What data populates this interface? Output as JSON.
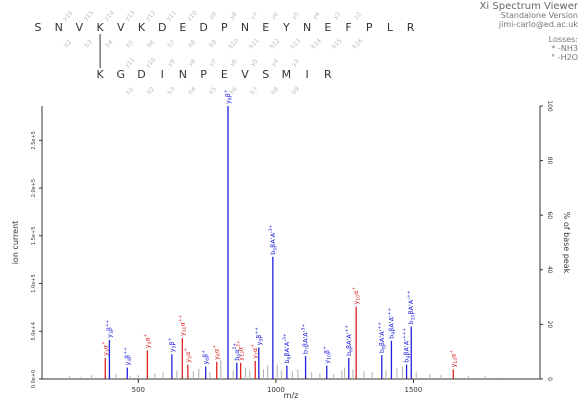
{
  "app": {
    "title": "Xi Spectrum Viewer",
    "version": "Standalone Version",
    "contact": "jimi-carlo@ed.ac.uk"
  },
  "losses": {
    "heading": "Losses:",
    "items": [
      "* -NH3",
      "° -H2O"
    ]
  },
  "peptides": {
    "alpha": [
      "S",
      "N",
      "V",
      "K",
      "V",
      "K",
      "D",
      "E",
      "D",
      "P",
      "N",
      "E",
      "Y",
      "N",
      "E",
      "F",
      "P",
      "L",
      "R"
    ],
    "beta": [
      "K",
      "G",
      "D",
      "I",
      "N",
      "P",
      "E",
      "V",
      "S",
      "M",
      "I",
      "R"
    ],
    "crosslink_alpha_index": 3,
    "crosslink_beta_index": 0,
    "alpha_b_labels": [
      "b2",
      "b3",
      "b4",
      "b5",
      "b6",
      "b7",
      "b8",
      "b9",
      "b10",
      "b11",
      "b12",
      "b13",
      "b14",
      "b15",
      "b16"
    ],
    "alpha_y_labels": [
      "y16",
      "y15",
      "y14",
      "y13",
      "y12",
      "y11",
      "y10",
      "y9",
      "y8",
      "y7",
      "y6",
      "y5",
      "y4",
      "y3",
      "y2"
    ],
    "beta_b_labels": [
      "b1",
      "b2",
      "b3",
      "b4",
      "b5",
      "b6",
      "b7",
      "b8",
      "b9"
    ],
    "beta_y_labels": [
      "y11",
      "y10",
      "y9",
      "y8",
      "y7",
      "y6",
      "y5",
      "y4",
      "y3"
    ]
  },
  "chart_data": {
    "type": "bar",
    "xlabel": "m/z",
    "ylabel": "ion current",
    "ylabel_right": "% of base peak",
    "xlim": [
      150,
      1960
    ],
    "ylim": [
      0,
      286000.0
    ],
    "xticks": [
      500,
      1000,
      1500
    ],
    "yticks": [
      0,
      50000.0,
      100000.0,
      150000.0,
      200000.0,
      250000.0
    ],
    "ytick_labels": [
      "0.0e+0",
      "5.0e+4",
      "1.0e+5",
      "1.5e+5",
      "2.0e+5",
      "2.5e+5"
    ],
    "y2ticks": [
      0,
      20,
      40,
      60,
      80,
      100
    ],
    "colors": {
      "alpha": "#e02020",
      "beta": "#2020e0",
      "unmatched": "#b0b0b0",
      "peptide_text": "#333333",
      "fragment_label": "#bbbbbb"
    },
    "matched_peaks": [
      {
        "mz": 380,
        "intensity": 22000,
        "series": "alpha",
        "label": "y3α",
        "sup": "+"
      },
      {
        "mz": 395,
        "intensity": 41000,
        "series": "beta",
        "label": "y3β",
        "sup": "++"
      },
      {
        "mz": 460,
        "intensity": 12000,
        "series": "beta",
        "label": "y4β",
        "sup": "++"
      },
      {
        "mz": 533,
        "intensity": 30000,
        "series": "alpha",
        "label": "y4α",
        "sup": "+"
      },
      {
        "mz": 622,
        "intensity": 26000,
        "series": "beta",
        "label": "y5β",
        "sup": "+"
      },
      {
        "mz": 660,
        "intensity": 43000,
        "series": "alpha",
        "label": "y10α",
        "sup": "++"
      },
      {
        "mz": 680,
        "intensity": 15000,
        "series": "alpha",
        "label": "y5α",
        "sup": "+"
      },
      {
        "mz": 745,
        "intensity": 13000,
        "series": "beta",
        "label": "y6β",
        "sup": "+"
      },
      {
        "mz": 785,
        "intensity": 18000,
        "series": "alpha",
        "label": "y6α",
        "sup": "+"
      },
      {
        "mz": 826,
        "intensity": 286000,
        "series": "beta",
        "label": "y8β",
        "sup": "+"
      },
      {
        "mz": 858,
        "intensity": 17000,
        "series": "beta",
        "label": "b6α",
        "sup": "2+"
      },
      {
        "mz": 872,
        "intensity": 17000,
        "series": "alpha",
        "label": "y13α",
        "sup": "2+"
      },
      {
        "mz": 925,
        "intensity": 19000,
        "series": "alpha",
        "label": "y7α",
        "sup": "+"
      },
      {
        "mz": 938,
        "intensity": 33000,
        "series": "beta",
        "label": "y9β",
        "sup": "++"
      },
      {
        "mz": 989,
        "intensity": 128000,
        "series": "beta",
        "label": "b5βA'A'",
        "sup": "3+"
      },
      {
        "mz": 1040,
        "intensity": 14000,
        "series": "beta",
        "label": "b6βA'A'",
        "sup": "3+"
      },
      {
        "mz": 1108,
        "intensity": 24000,
        "series": "beta",
        "label": "b7βA'A'",
        "sup": "3+"
      },
      {
        "mz": 1185,
        "intensity": 14000,
        "series": "beta",
        "label": "y10β",
        "sup": "+"
      },
      {
        "mz": 1265,
        "intensity": 22000,
        "series": "beta",
        "label": "b6βA'A'",
        "sup": "++"
      },
      {
        "mz": 1292,
        "intensity": 76000,
        "series": "alpha",
        "label": "y10α",
        "sup": "+"
      },
      {
        "mz": 1385,
        "intensity": 25000,
        "series": "beta",
        "label": "b8βA'A'",
        "sup": "++"
      },
      {
        "mz": 1420,
        "intensity": 40000,
        "series": "beta",
        "label": "b9βA'A'",
        "sup": "++"
      },
      {
        "mz": 1475,
        "intensity": 15000,
        "series": "beta",
        "label": "b9βA'A'",
        "sup": "+++"
      },
      {
        "mz": 1492,
        "intensity": 55000,
        "series": "beta",
        "label": "b10βA'A'",
        "sup": "++"
      },
      {
        "mz": 1645,
        "intensity": 10000,
        "series": "alpha",
        "label": "y14α",
        "sup": "+"
      }
    ],
    "unmatched_peaks": [
      [
        250,
        3000
      ],
      [
        290,
        2000
      ],
      [
        330,
        4000
      ],
      [
        420,
        5000
      ],
      [
        470,
        3000
      ],
      [
        500,
        4000
      ],
      [
        560,
        6000
      ],
      [
        590,
        7000
      ],
      [
        640,
        9000
      ],
      [
        700,
        8000
      ],
      [
        720,
        11000
      ],
      [
        760,
        7000
      ],
      [
        800,
        20000
      ],
      [
        845,
        9000
      ],
      [
        890,
        12000
      ],
      [
        905,
        9000
      ],
      [
        955,
        10000
      ],
      [
        970,
        14000
      ],
      [
        1005,
        15000
      ],
      [
        1020,
        9000
      ],
      [
        1060,
        8000
      ],
      [
        1080,
        10000
      ],
      [
        1130,
        7000
      ],
      [
        1160,
        6000
      ],
      [
        1210,
        5000
      ],
      [
        1240,
        9000
      ],
      [
        1250,
        12000
      ],
      [
        1280,
        10000
      ],
      [
        1320,
        8000
      ],
      [
        1350,
        7000
      ],
      [
        1400,
        9000
      ],
      [
        1440,
        11000
      ],
      [
        1460,
        13000
      ],
      [
        1510,
        7000
      ],
      [
        1560,
        5000
      ],
      [
        1600,
        4000
      ],
      [
        1700,
        3000
      ],
      [
        1760,
        3000
      ],
      [
        1810,
        2000
      ]
    ]
  }
}
